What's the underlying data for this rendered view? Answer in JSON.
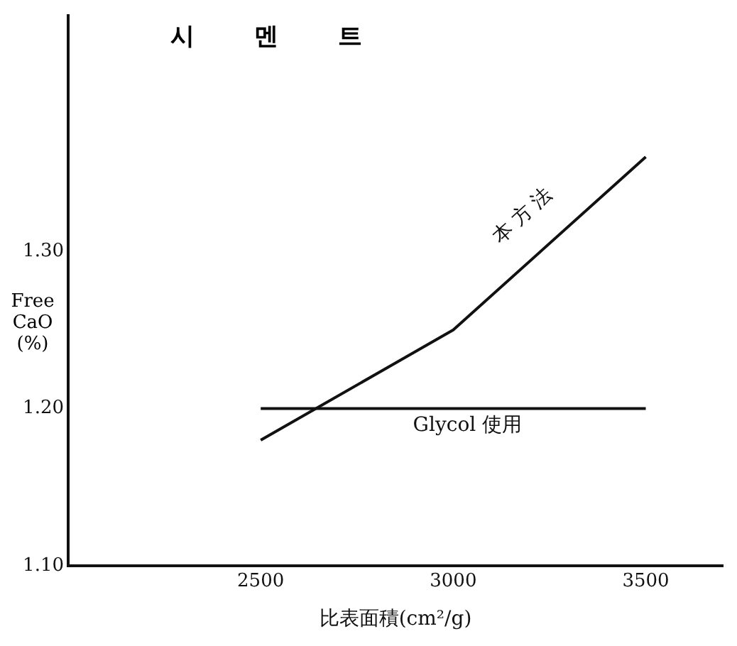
{
  "chart_data": {
    "type": "line",
    "title": "시 멘 트",
    "xlabel": "比表面積(cm²/g)",
    "ylabel": "Free CaO (%)",
    "x": [
      2500,
      3000,
      3500
    ],
    "series": [
      {
        "name": "本方法",
        "color": "#111111",
        "values": [
          1.18,
          1.25,
          1.36
        ]
      },
      {
        "name": "Glycol 使用",
        "color": "#111111",
        "values": [
          1.2,
          1.2,
          1.2
        ]
      }
    ],
    "xlim": [
      2000,
      3700
    ],
    "xticks": [
      2500,
      3000,
      3500
    ],
    "ylim": [
      1.1,
      1.45
    ],
    "yticks": [
      {
        "value": 1.1,
        "label": "1.10"
      },
      {
        "value": 1.2,
        "label": "1.20"
      },
      {
        "value": 1.3,
        "label": "1.30"
      }
    ],
    "grid": false,
    "legend": false,
    "marker": "none",
    "line_style": "solid"
  }
}
